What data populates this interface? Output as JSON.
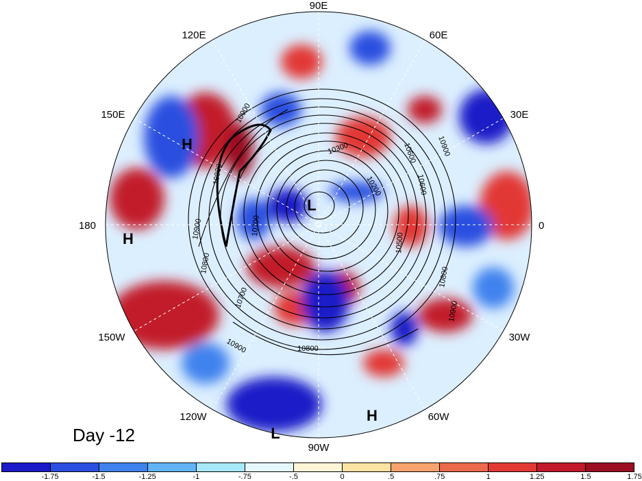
{
  "panel_label": "Day -12",
  "longitude_labels": [
    "90E",
    "60E",
    "30E",
    "0",
    "30W",
    "60W",
    "90W",
    "120W",
    "150W",
    "180",
    "150E",
    "120E"
  ],
  "contour_labels": [
    "10900",
    "10800",
    "10900",
    "10800",
    "10700",
    "10900",
    "10800",
    "10300",
    "10700",
    "10200",
    "10600",
    "10500",
    "10800",
    "10900",
    "10600",
    "10900"
  ],
  "pressure_centers": [
    {
      "label": "L"
    },
    {
      "label": "H"
    },
    {
      "label": "H"
    },
    {
      "label": "H"
    },
    {
      "label": "L"
    }
  ],
  "colorbar": {
    "colors": [
      "#1a1ac8",
      "#2a4fe0",
      "#3f82ee",
      "#62b4f6",
      "#a7e8fb",
      "#e6f8ff",
      "#fff5d8",
      "#fde3a3",
      "#f6a36d",
      "#ec6a4c",
      "#e23934",
      "#c21a2a",
      "#9a0f21"
    ],
    "tick_labels": [
      "-1.75",
      "-1.5",
      "-1.25",
      "-1",
      "-.75",
      "-.5",
      "0",
      ".5",
      ".75",
      "1",
      "1.25",
      "1.5",
      "1.75"
    ]
  }
}
